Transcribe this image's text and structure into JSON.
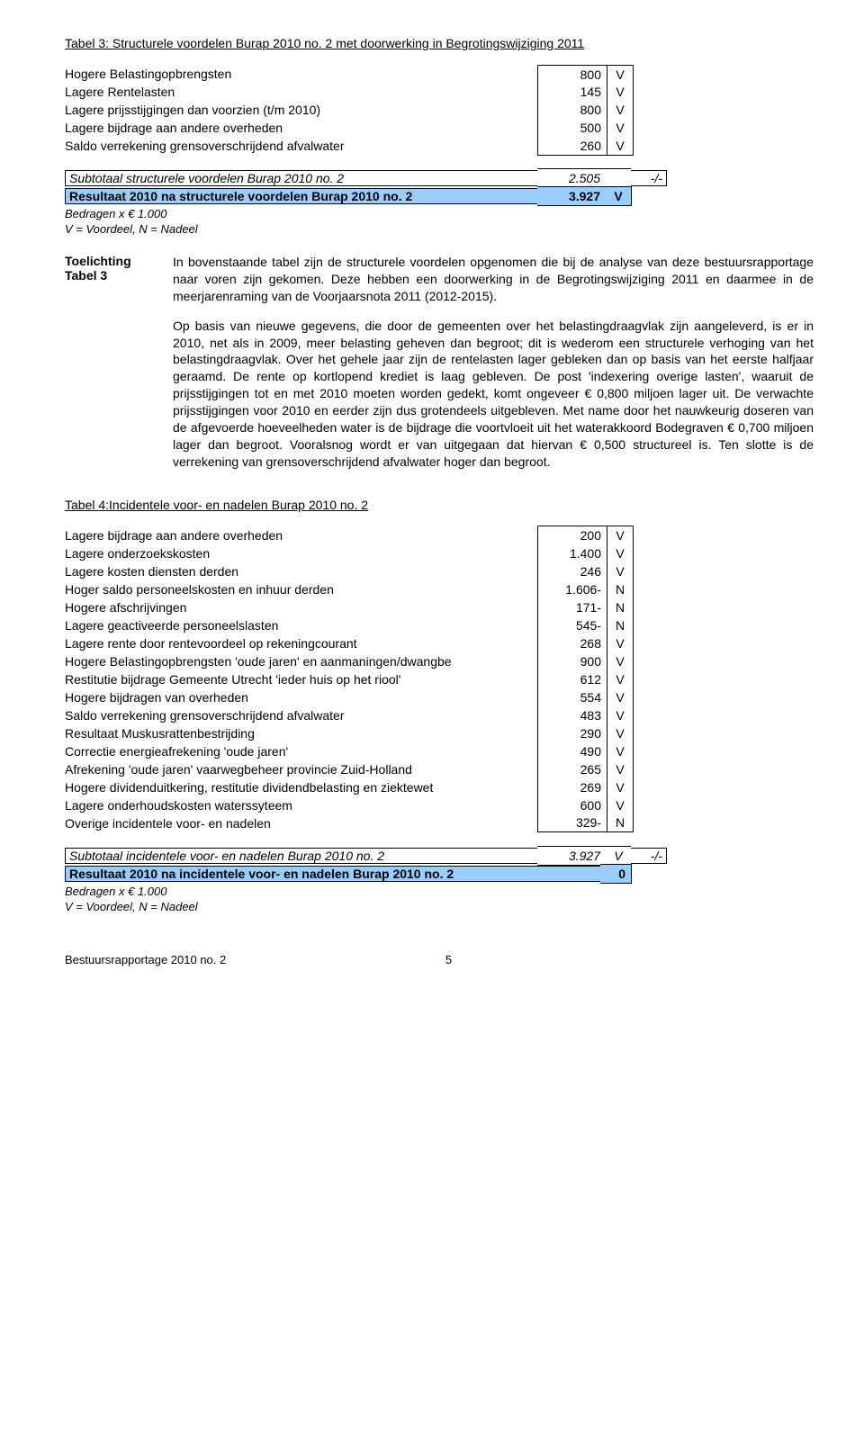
{
  "colors": {
    "highlight": "#99ccff",
    "border": "#000000",
    "text": "#000000",
    "background": "#ffffff"
  },
  "table3": {
    "title": "Tabel 3: Structurele voordelen Burap 2010 no. 2 met doorwerking in Begrotingswijziging 2011",
    "rows": [
      {
        "label": "Hogere Belastingopbrengsten",
        "value": "800",
        "vn": "V"
      },
      {
        "label": "Lagere Rentelasten",
        "value": "145",
        "vn": "V"
      },
      {
        "label": "Lagere prijsstijgingen dan voorzien (t/m 2010)",
        "value": "800",
        "vn": "V"
      },
      {
        "label": "Lagere bijdrage aan andere overheden",
        "value": "500",
        "vn": "V"
      },
      {
        "label": "Saldo verrekening grensoverschrijdend afvalwater",
        "value": "260",
        "vn": "V"
      }
    ],
    "subtotal": {
      "label": "Subtotaal structurele voordelen Burap 2010 no. 2",
      "value": "2.505",
      "tail": "-/-"
    },
    "result": {
      "label": "Resultaat 2010 na structurele voordelen Burap 2010 no. 2",
      "value": "3.927",
      "vn": "V"
    }
  },
  "notes": {
    "line1": "Bedragen x € 1.000",
    "line2": "V = Voordeel, N = Nadeel"
  },
  "toelichting": {
    "heading1": "Toelichting",
    "heading2": "Tabel 3",
    "para1": "In bovenstaande tabel zijn de structurele voordelen opgenomen die bij de analyse van deze bestuursrapportage naar voren zijn gekomen. Deze hebben een doorwerking in de Begrotingswijziging 2011 en daarmee in de meerjarenraming van de Voorjaarsnota 2011 (2012-2015).",
    "para2": "Op basis van nieuwe gegevens, die door de gemeenten over het belastingdraagvlak zijn aangeleverd, is er in 2010, net als in 2009, meer belasting geheven dan begroot; dit is wederom een structurele verhoging van het belastingdraagvlak. Over het gehele jaar zijn de rentelasten lager gebleken dan op basis van het eerste halfjaar geraamd. De rente op kortlopend krediet is laag gebleven. De post 'indexering overige lasten', waaruit de prijsstijgingen tot en met 2010 moeten worden gedekt, komt ongeveer € 0,800 miljoen lager uit. De verwachte prijsstijgingen voor 2010 en eerder zijn dus grotendeels uitgebleven. Met name door het nauwkeurig doseren van de afgevoerde hoeveelheden water is de bijdrage die voortvloeit uit het waterakkoord Bodegraven € 0,700 miljoen lager dan begroot. Vooralsnog wordt er van uitgegaan dat hiervan € 0,500 structureel is. Ten slotte is de verrekening van grensoverschrijdend afvalwater hoger dan begroot."
  },
  "table4": {
    "title": "Tabel 4:Incidentele voor- en nadelen Burap 2010 no. 2",
    "rows": [
      {
        "label": "Lagere bijdrage aan andere overheden",
        "value": "200",
        "vn": "V"
      },
      {
        "label": "Lagere onderzoekskosten",
        "value": "1.400",
        "vn": "V"
      },
      {
        "label": "Lagere kosten diensten derden",
        "value": "246",
        "vn": "V"
      },
      {
        "label": "Hoger saldo personeelskosten en inhuur derden",
        "value": "1.606-",
        "vn": "N"
      },
      {
        "label": "Hogere afschrijvingen",
        "value": "171-",
        "vn": "N"
      },
      {
        "label": "Lagere geactiveerde personeelslasten",
        "value": "545-",
        "vn": "N"
      },
      {
        "label": "Lagere rente door rentevoordeel op rekeningcourant",
        "value": "268",
        "vn": "V"
      },
      {
        "label": "Hogere Belastingopbrengsten 'oude jaren' en aanmaningen/dwangbe",
        "value": "900",
        "vn": "V"
      },
      {
        "label": "Restitutie bijdrage Gemeente Utrecht 'ieder huis op het riool'",
        "value": "612",
        "vn": "V"
      },
      {
        "label": "Hogere bijdragen van overheden",
        "value": "554",
        "vn": "V"
      },
      {
        "label": "Saldo verrekening grensoverschrijdend afvalwater",
        "value": "483",
        "vn": "V"
      },
      {
        "label": "Resultaat Muskusrattenbestrijding",
        "value": "290",
        "vn": "V"
      },
      {
        "label": "Correctie energieafrekening 'oude jaren'",
        "value": "490",
        "vn": "V"
      },
      {
        "label": "Afrekening 'oude jaren' vaarwegbeheer provincie Zuid-Holland",
        "value": "265",
        "vn": "V"
      },
      {
        "label": "Hogere dividenduitkering, restitutie dividendbelasting en ziektewet",
        "value": "269",
        "vn": "V"
      },
      {
        "label": "Lagere onderhoudskosten waterssyteem",
        "value": "600",
        "vn": "V"
      },
      {
        "label": "Overige incidentele voor- en nadelen",
        "value": "329-",
        "vn": "N"
      }
    ],
    "subtotal": {
      "label": "Subtotaal incidentele voor- en nadelen Burap 2010 no. 2",
      "value": "3.927",
      "vn": "V",
      "tail": "-/-"
    },
    "result": {
      "label": "Resultaat 2010 na incidentele voor- en nadelen Burap 2010 no. 2",
      "value": "0",
      "vn": ""
    }
  },
  "footer": {
    "left": "Bestuursrapportage 2010 no. 2",
    "page": "5"
  }
}
